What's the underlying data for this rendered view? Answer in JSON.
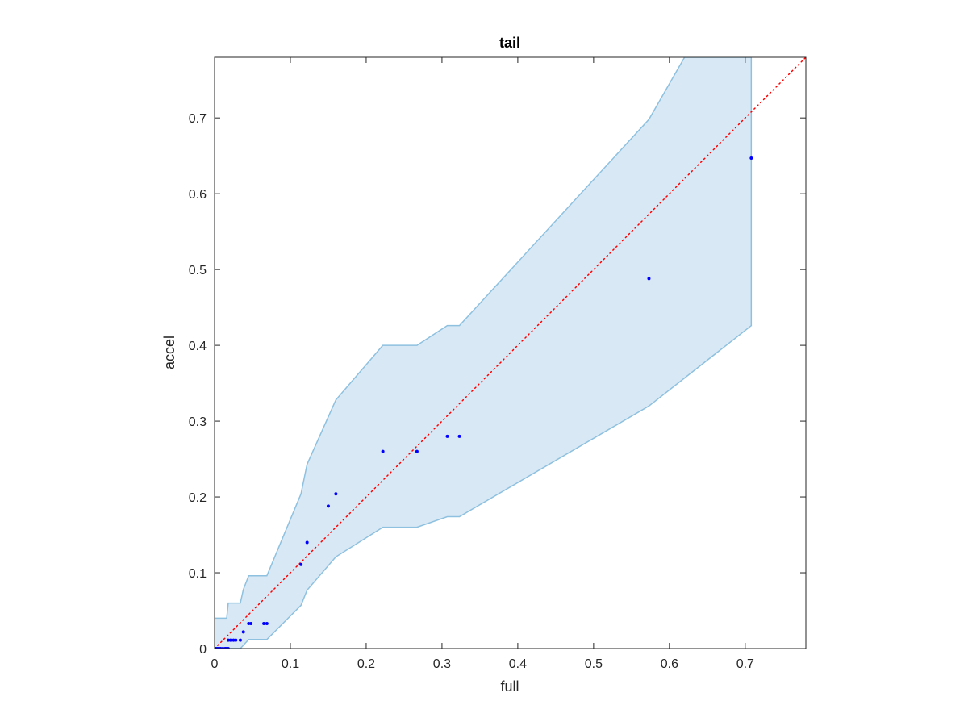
{
  "chart_data": {
    "type": "scatter",
    "title": "tail",
    "xlabel": "full",
    "ylabel": "accel",
    "xlim": [
      0,
      0.78
    ],
    "ylim": [
      0,
      0.78
    ],
    "xticks": [
      "0",
      "0.1",
      "0.2",
      "0.3",
      "0.4",
      "0.5",
      "0.6",
      "0.7"
    ],
    "yticks": [
      "0",
      "0.1",
      "0.2",
      "0.3",
      "0.4",
      "0.5",
      "0.6",
      "0.7"
    ],
    "grid": false,
    "colors": {
      "points": "#0000ff",
      "band_fill": "#d9e8f5",
      "band_edge": "#8ec1e0",
      "diagonal": "#ff0000",
      "axes": "#262626"
    },
    "points": [
      {
        "x": 0.0,
        "y": 0.0
      },
      {
        "x": 0.002,
        "y": 0.0
      },
      {
        "x": 0.004,
        "y": 0.0
      },
      {
        "x": 0.006,
        "y": 0.0
      },
      {
        "x": 0.008,
        "y": 0.0
      },
      {
        "x": 0.011,
        "y": 0.0
      },
      {
        "x": 0.014,
        "y": 0.0
      },
      {
        "x": 0.016,
        "y": 0.0
      },
      {
        "x": 0.018,
        "y": 0.0
      },
      {
        "x": 0.018,
        "y": 0.011
      },
      {
        "x": 0.021,
        "y": 0.011
      },
      {
        "x": 0.025,
        "y": 0.011
      },
      {
        "x": 0.028,
        "y": 0.011
      },
      {
        "x": 0.034,
        "y": 0.011
      },
      {
        "x": 0.038,
        "y": 0.022
      },
      {
        "x": 0.045,
        "y": 0.033
      },
      {
        "x": 0.048,
        "y": 0.033
      },
      {
        "x": 0.065,
        "y": 0.033
      },
      {
        "x": 0.069,
        "y": 0.033
      },
      {
        "x": 0.114,
        "y": 0.111
      },
      {
        "x": 0.122,
        "y": 0.14
      },
      {
        "x": 0.15,
        "y": 0.188
      },
      {
        "x": 0.16,
        "y": 0.204
      },
      {
        "x": 0.222,
        "y": 0.26
      },
      {
        "x": 0.267,
        "y": 0.26
      },
      {
        "x": 0.307,
        "y": 0.28
      },
      {
        "x": 0.323,
        "y": 0.28
      },
      {
        "x": 0.573,
        "y": 0.488
      },
      {
        "x": 0.708,
        "y": 0.647
      }
    ],
    "band": {
      "upper": [
        [
          0,
          0.04
        ],
        [
          0.016,
          0.04
        ],
        [
          0.018,
          0.06
        ],
        [
          0.034,
          0.06
        ],
        [
          0.038,
          0.078
        ],
        [
          0.045,
          0.096
        ],
        [
          0.069,
          0.096
        ],
        [
          0.114,
          0.204
        ],
        [
          0.122,
          0.243
        ],
        [
          0.16,
          0.328
        ],
        [
          0.222,
          0.4
        ],
        [
          0.267,
          0.4
        ],
        [
          0.307,
          0.426
        ],
        [
          0.323,
          0.426
        ],
        [
          0.573,
          0.698
        ],
        [
          0.62,
          0.78
        ],
        [
          0.708,
          0.78
        ]
      ],
      "lower": [
        [
          0.708,
          0.426
        ],
        [
          0.573,
          0.32
        ],
        [
          0.323,
          0.174
        ],
        [
          0.307,
          0.174
        ],
        [
          0.267,
          0.16
        ],
        [
          0.222,
          0.16
        ],
        [
          0.16,
          0.121
        ],
        [
          0.122,
          0.077
        ],
        [
          0.114,
          0.057
        ],
        [
          0.069,
          0.012
        ],
        [
          0.045,
          0.012
        ],
        [
          0.034,
          0.0
        ],
        [
          0,
          0.0
        ]
      ]
    },
    "diagonal": [
      [
        0,
        0
      ],
      [
        0.78,
        0.78
      ]
    ]
  }
}
